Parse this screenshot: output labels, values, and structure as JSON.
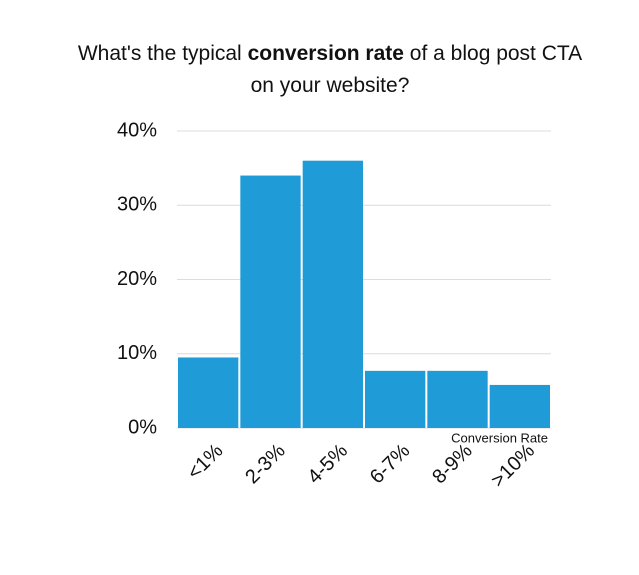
{
  "chart_data": {
    "type": "bar",
    "title": [
      [
        {
          "text": "What's the typical "
        },
        {
          "text": "conversion rate",
          "bold": true
        },
        {
          "text": " of a blog post CTA"
        }
      ],
      [
        {
          "text": "on your website?"
        }
      ]
    ],
    "x_label": "Conversion Rate",
    "categories": [
      "<1%",
      "2-3%",
      "4-5%",
      "6-7%",
      "8-9%",
      ">10%"
    ],
    "values": [
      9.5,
      34,
      36,
      7.7,
      7.7,
      5.8
    ],
    "color": "#1f9bd8",
    "ylim": [
      0,
      40
    ],
    "yticks": [
      {
        "value": 0,
        "label": "0%"
      },
      {
        "value": 10,
        "label": "10%"
      },
      {
        "value": 20,
        "label": "20%"
      },
      {
        "value": 30,
        "label": "30%"
      },
      {
        "value": 40,
        "label": "40%"
      }
    ],
    "grid": true
  }
}
